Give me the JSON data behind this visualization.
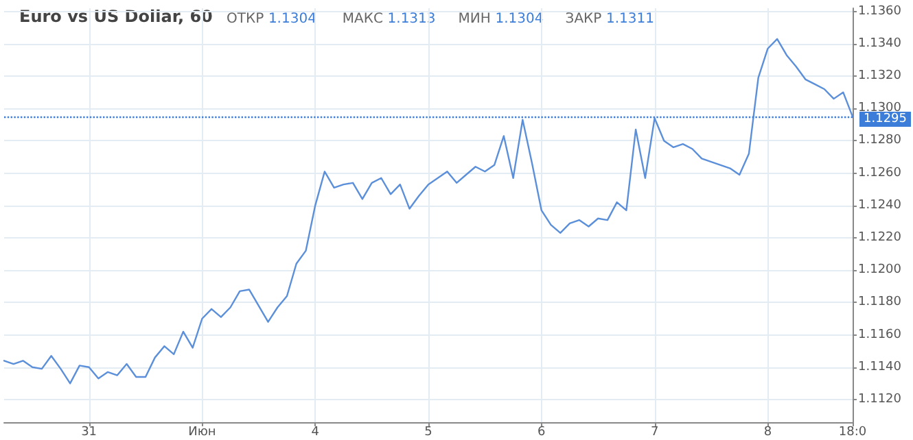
{
  "chart_data": {
    "type": "line",
    "title": "Euro vs US Dollar, 60",
    "annotations": [
      "ОТКР 1.1304",
      "МАКС 1.1313",
      "МИН 1.1304",
      "ЗАКР 1.1311"
    ],
    "categories": [
      null,
      null,
      null,
      null,
      null,
      null,
      null,
      null,
      null,
      "31",
      null,
      null,
      null,
      null,
      null,
      null,
      null,
      null,
      null,
      null,
      null,
      "Июн",
      null,
      null,
      null,
      null,
      null,
      null,
      null,
      null,
      null,
      null,
      null,
      "4",
      null,
      null,
      null,
      null,
      null,
      null,
      null,
      null,
      null,
      null,
      null,
      "5",
      null,
      null,
      null,
      null,
      null,
      null,
      null,
      null,
      null,
      null,
      null,
      "6",
      null,
      null,
      null,
      null,
      null,
      null,
      null,
      null,
      null,
      null,
      null,
      "7",
      null,
      null,
      null,
      null,
      null,
      null,
      null,
      null,
      null,
      null,
      null,
      "8",
      null,
      null,
      null,
      null,
      null,
      null,
      null,
      null,
      "18:0"
    ],
    "series": [
      {
        "color": "#5b8fd9",
        "values": [
          1.1144,
          1.1142,
          1.1144,
          1.114,
          1.1139,
          1.1147,
          1.1139,
          1.113,
          1.1141,
          1.114,
          1.1133,
          1.1137,
          1.1135,
          1.1142,
          1.1134,
          1.1134,
          1.1146,
          1.1153,
          1.1148,
          1.1162,
          1.1152,
          1.117,
          1.1176,
          1.1171,
          1.1177,
          1.1187,
          1.1188,
          1.1178,
          1.1168,
          1.1177,
          1.1184,
          1.1204,
          1.1212,
          1.124,
          1.1261,
          1.1251,
          1.1253,
          1.1254,
          1.1244,
          1.1254,
          1.1257,
          1.1247,
          1.1253,
          1.1238,
          1.1246,
          1.1253,
          1.1257,
          1.1261,
          1.1254,
          1.1259,
          1.1264,
          1.1261,
          1.1265,
          1.1283,
          1.1257,
          1.1293,
          1.1266,
          1.1237,
          1.1228,
          1.1223,
          1.1229,
          1.1231,
          1.1227,
          1.1232,
          1.1231,
          1.1242,
          1.1237,
          1.1287,
          1.1257,
          1.1294,
          1.128,
          1.1276,
          1.1278,
          1.1275,
          1.1269,
          1.1267,
          1.1265,
          1.1263,
          1.1259,
          1.1272,
          1.1319,
          1.1337,
          1.1343,
          1.1333,
          1.1326,
          1.1318,
          1.1315,
          1.1312,
          1.1306,
          1.131,
          1.1295
        ]
      }
    ],
    "ylim": [
      1.1106,
      1.1362
    ],
    "yticks": [
      {
        "value": 1.112,
        "label": "1.1120"
      },
      {
        "value": 1.114,
        "label": "1.1140"
      },
      {
        "value": 1.116,
        "label": "1.1160"
      },
      {
        "value": 1.118,
        "label": "1.1180"
      },
      {
        "value": 1.12,
        "label": "1.1200"
      },
      {
        "value": 1.122,
        "label": "1.1220"
      },
      {
        "value": 1.124,
        "label": "1.1240"
      },
      {
        "value": 1.126,
        "label": "1.1260"
      },
      {
        "value": 1.128,
        "label": "1.1280"
      },
      {
        "value": 1.13,
        "label": "1.1300"
      },
      {
        "value": 1.132,
        "label": "1.1320"
      },
      {
        "value": 1.134,
        "label": "1.1340"
      },
      {
        "value": 1.136,
        "label": "1.1360"
      }
    ],
    "ref_lines": [
      {
        "axis": "y",
        "value": 1.1295,
        "label": "1.1295",
        "color": "#3b7dd8",
        "line_style": "dotted"
      }
    ],
    "grid": true,
    "marker": "none",
    "line_style": "solid"
  }
}
